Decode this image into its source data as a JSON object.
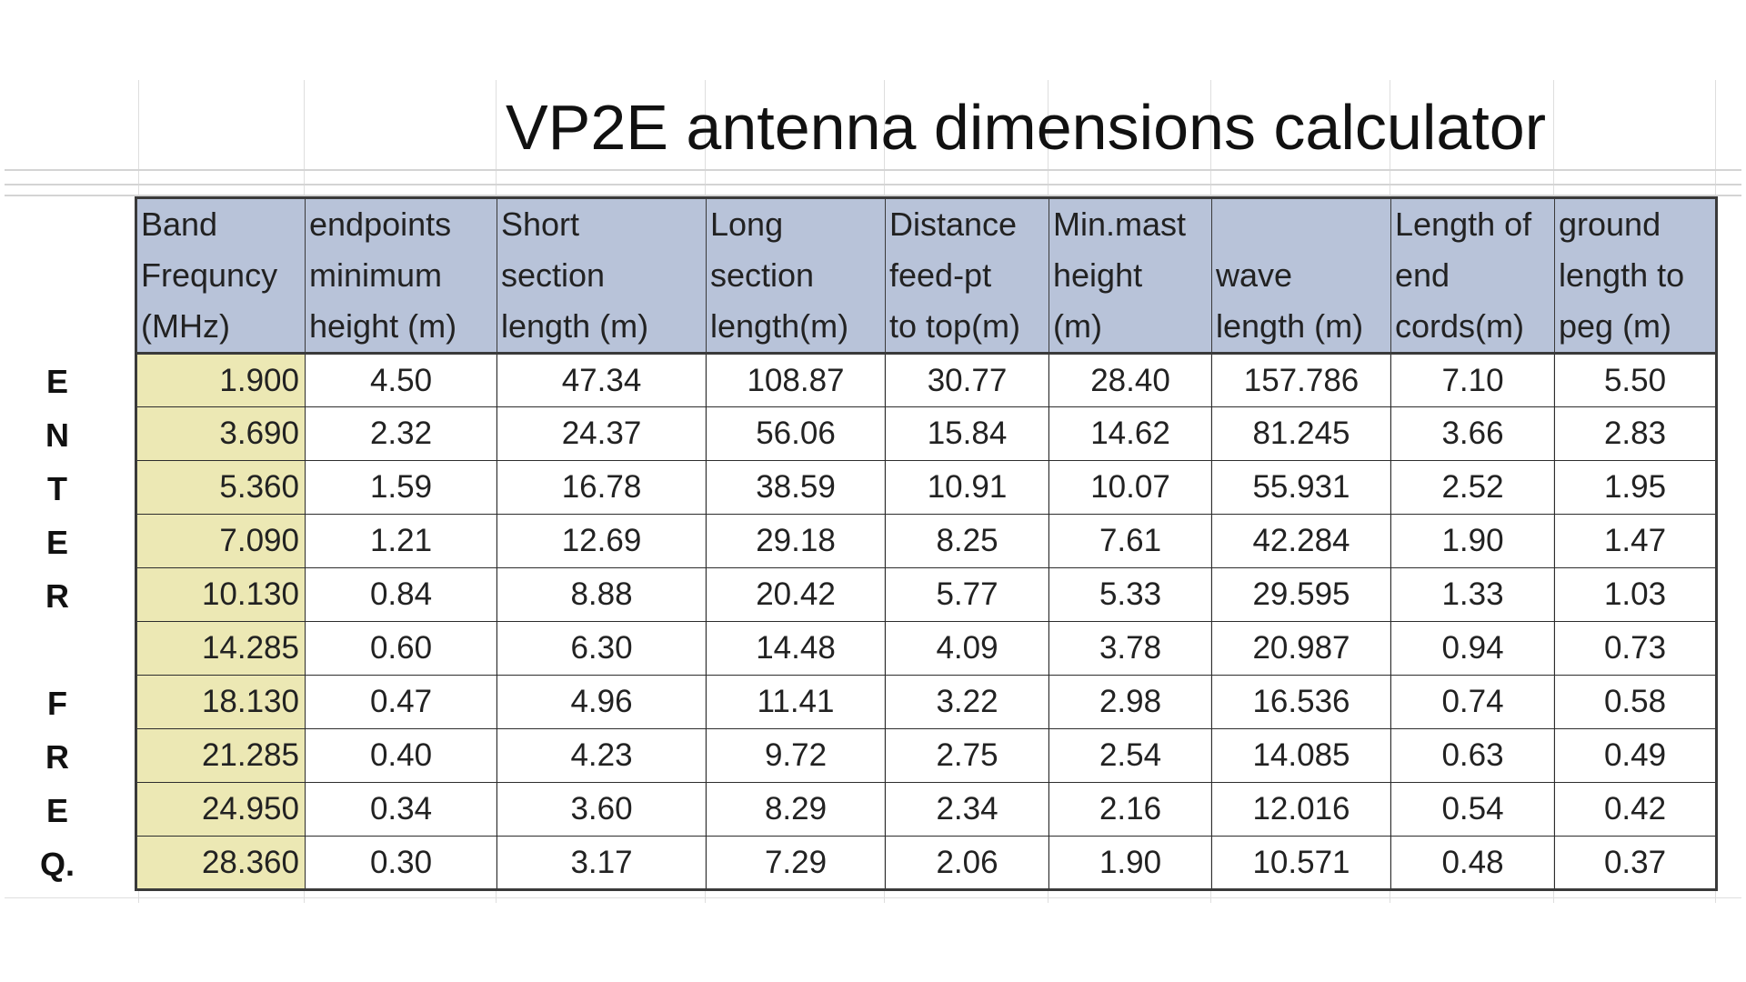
{
  "title": "VP2E antenna dimensions calculator",
  "columns": [
    "Band\nFrequncy\n(MHz)",
    "endpoints\nminimum\nheight (m)",
    "Short\nsection\nlength (m)",
    "Long\nsection\nlength(m)",
    "Distance\nfeed-pt\nto top(m)",
    "Min.mast\nheight\n(m)",
    "\nwave\nlength (m)",
    "Length of\nend\ncords(m)",
    "ground\nlength to\npeg (m)"
  ],
  "row_labels": [
    "E",
    "N",
    "T",
    "E",
    "R",
    "",
    "F",
    "R",
    "E",
    "Q."
  ],
  "rows": [
    [
      "1.900",
      "4.50",
      "47.34",
      "108.87",
      "30.77",
      "28.40",
      "157.786",
      "7.10",
      "5.50"
    ],
    [
      "3.690",
      "2.32",
      "24.37",
      "56.06",
      "15.84",
      "14.62",
      "81.245",
      "3.66",
      "2.83"
    ],
    [
      "5.360",
      "1.59",
      "16.78",
      "38.59",
      "10.91",
      "10.07",
      "55.931",
      "2.52",
      "1.95"
    ],
    [
      "7.090",
      "1.21",
      "12.69",
      "29.18",
      "8.25",
      "7.61",
      "42.284",
      "1.90",
      "1.47"
    ],
    [
      "10.130",
      "0.84",
      "8.88",
      "20.42",
      "5.77",
      "5.33",
      "29.595",
      "1.33",
      "1.03"
    ],
    [
      "14.285",
      "0.60",
      "6.30",
      "14.48",
      "4.09",
      "3.78",
      "20.987",
      "0.94",
      "0.73"
    ],
    [
      "18.130",
      "0.47",
      "4.96",
      "11.41",
      "3.22",
      "2.98",
      "16.536",
      "0.74",
      "0.58"
    ],
    [
      "21.285",
      "0.40",
      "4.23",
      "9.72",
      "2.75",
      "2.54",
      "14.085",
      "0.63",
      "0.49"
    ],
    [
      "24.950",
      "0.34",
      "3.60",
      "8.29",
      "2.34",
      "2.16",
      "12.016",
      "0.54",
      "0.42"
    ],
    [
      "28.360",
      "0.30",
      "3.17",
      "7.29",
      "2.06",
      "1.90",
      "10.571",
      "0.48",
      "0.37"
    ]
  ],
  "colors": {
    "header_bg": "#b8c3d9",
    "input_bg": "#ece8b4",
    "border": "#3a3a3a"
  }
}
